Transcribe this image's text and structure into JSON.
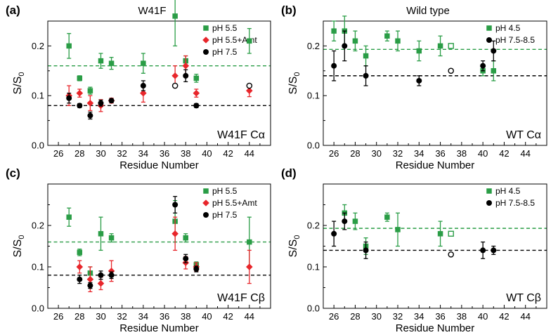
{
  "figure": {
    "colors": {
      "green": "#2a9d46",
      "red": "#e8262b",
      "black": "#000000"
    }
  },
  "chart_data": [
    {
      "type": "scatter",
      "panel_label": "(a)",
      "title": "W41F",
      "corner_text": "W41F Cα",
      "xlabel": "Residue Number",
      "ylabel": "S/S0",
      "xlim": [
        25,
        46
      ],
      "ylim": [
        0,
        0.25
      ],
      "xticks": [
        26,
        28,
        30,
        32,
        34,
        36,
        38,
        40,
        42,
        44
      ],
      "yticks": [
        0.0,
        0.1,
        0.2
      ],
      "legend_position": "top-right",
      "reference_lines": [
        {
          "y": 0.16,
          "color": "green",
          "style": "dashed"
        },
        {
          "y": 0.08,
          "color": "black",
          "style": "dashed"
        }
      ],
      "series": [
        {
          "name": "pH 5.5",
          "marker": "square",
          "color": "green",
          "points": [
            {
              "x": 27,
              "y": 0.2,
              "err": 0.025
            },
            {
              "x": 28,
              "y": 0.135,
              "err": 0.005
            },
            {
              "x": 29,
              "y": 0.11,
              "err": 0.007
            },
            {
              "x": 30,
              "y": 0.17,
              "err": 0.015
            },
            {
              "x": 31,
              "y": 0.165,
              "err": 0.012
            },
            {
              "x": 34,
              "y": 0.165,
              "err": 0.02
            },
            {
              "x": 37,
              "y": 0.26,
              "err": 0.06
            },
            {
              "x": 38,
              "y": 0.17,
              "err": 0.01
            },
            {
              "x": 39,
              "y": 0.135,
              "err": 0.008
            },
            {
              "x": 44,
              "y": 0.21,
              "err": 0.025
            }
          ]
        },
        {
          "name": "pH 5.5+Amt",
          "marker": "diamond",
          "color": "red",
          "points": [
            {
              "x": 27,
              "y": 0.1,
              "err": 0.02
            },
            {
              "x": 28,
              "y": 0.105,
              "err": 0.008
            },
            {
              "x": 29,
              "y": 0.085,
              "err": 0.015
            },
            {
              "x": 30,
              "y": 0.08,
              "err": 0.012
            },
            {
              "x": 31,
              "y": 0.09,
              "err": 0.005
            },
            {
              "x": 34,
              "y": 0.105,
              "err": 0.018
            },
            {
              "x": 37,
              "y": 0.14,
              "err": 0.02
            },
            {
              "x": 38,
              "y": 0.16,
              "err": 0.02
            },
            {
              "x": 39,
              "y": 0.105,
              "err": 0.008
            },
            {
              "x": 44,
              "y": 0.11,
              "err": 0.012
            }
          ]
        },
        {
          "name": "pH 7.5",
          "marker": "circle",
          "color": "black",
          "points": [
            {
              "x": 27,
              "y": 0.095,
              "err": 0.01
            },
            {
              "x": 28,
              "y": 0.08,
              "err": 0.004
            },
            {
              "x": 29,
              "y": 0.06,
              "err": 0.007
            },
            {
              "x": 30,
              "y": 0.085,
              "err": 0.006
            },
            {
              "x": 31,
              "y": 0.09,
              "err": 0.004
            },
            {
              "x": 34,
              "y": 0.12,
              "err": 0.01
            },
            {
              "x": 37,
              "y": 0.12,
              "err": 0,
              "open": true
            },
            {
              "x": 38,
              "y": 0.14,
              "err": 0.012
            },
            {
              "x": 39,
              "y": 0.08,
              "err": 0.004
            },
            {
              "x": 44,
              "y": 0.12,
              "err": 0,
              "open": true
            }
          ]
        }
      ]
    },
    {
      "type": "scatter",
      "panel_label": "(b)",
      "title": "Wild type",
      "corner_text": "WT Cα",
      "xlabel": "Residue Number",
      "ylabel": "S/S0",
      "xlim": [
        25,
        46
      ],
      "ylim": [
        0,
        0.25
      ],
      "xticks": [
        26,
        28,
        30,
        32,
        34,
        36,
        38,
        40,
        42,
        44
      ],
      "yticks": [
        0.0,
        0.1,
        0.2
      ],
      "legend_position": "top-right",
      "reference_lines": [
        {
          "y": 0.193,
          "color": "green",
          "style": "dashed"
        },
        {
          "y": 0.14,
          "color": "black",
          "style": "dashed"
        }
      ],
      "series": [
        {
          "name": "pH 4.5",
          "marker": "square",
          "color": "green",
          "points": [
            {
              "x": 26,
              "y": 0.23,
              "err": 0.02
            },
            {
              "x": 27,
              "y": 0.23,
              "err": 0.03
            },
            {
              "x": 28,
              "y": 0.21,
              "err": 0.02
            },
            {
              "x": 29,
              "y": 0.18,
              "err": 0.02
            },
            {
              "x": 31,
              "y": 0.22,
              "err": 0.01
            },
            {
              "x": 32,
              "y": 0.21,
              "err": 0.02
            },
            {
              "x": 34,
              "y": 0.19,
              "err": 0.02
            },
            {
              "x": 36,
              "y": 0.2,
              "err": 0.02
            },
            {
              "x": 37,
              "y": 0.2,
              "err": 0,
              "open": true
            },
            {
              "x": 40,
              "y": 0.15,
              "err": 0.01
            },
            {
              "x": 41,
              "y": 0.15,
              "err": 0.02
            }
          ]
        },
        {
          "name": "pH 7.5-8.5",
          "marker": "circle",
          "color": "black",
          "points": [
            {
              "x": 26,
              "y": 0.16,
              "err": 0.03
            },
            {
              "x": 27,
              "y": 0.2,
              "err": 0.03
            },
            {
              "x": 29,
              "y": 0.14,
              "err": 0.02
            },
            {
              "x": 34,
              "y": 0.13,
              "err": 0.01
            },
            {
              "x": 37,
              "y": 0.15,
              "err": 0,
              "open": true
            },
            {
              "x": 40,
              "y": 0.16,
              "err": 0.01
            },
            {
              "x": 41,
              "y": 0.19,
              "err": 0.02
            }
          ]
        }
      ]
    },
    {
      "type": "scatter",
      "panel_label": "(c)",
      "title": "",
      "corner_text": "W41F Cβ",
      "xlabel": "Residue Number",
      "ylabel": "S/S0",
      "xlim": [
        25,
        46
      ],
      "ylim": [
        0,
        0.3
      ],
      "xticks": [
        26,
        28,
        30,
        32,
        34,
        36,
        38,
        40,
        42,
        44
      ],
      "yticks": [
        0.0,
        0.1,
        0.2
      ],
      "legend_position": "top-right",
      "reference_lines": [
        {
          "y": 0.16,
          "color": "green",
          "style": "dashed"
        },
        {
          "y": 0.08,
          "color": "black",
          "style": "dashed"
        }
      ],
      "series": [
        {
          "name": "pH 5.5",
          "marker": "square",
          "color": "green",
          "points": [
            {
              "x": 27,
              "y": 0.22,
              "err": 0.022
            },
            {
              "x": 28,
              "y": 0.135,
              "err": 0.008
            },
            {
              "x": 29,
              "y": 0.085,
              "err": 0.015
            },
            {
              "x": 30,
              "y": 0.18,
              "err": 0.04
            },
            {
              "x": 31,
              "y": 0.17,
              "err": 0.01
            },
            {
              "x": 37,
              "y": 0.21,
              "err": 0.05
            },
            {
              "x": 38,
              "y": 0.17,
              "err": 0.01
            },
            {
              "x": 39,
              "y": 0.105,
              "err": 0.007
            },
            {
              "x": 44,
              "y": 0.16,
              "err": 0.06
            }
          ]
        },
        {
          "name": "pH 5.5+Amt",
          "marker": "diamond",
          "color": "red",
          "points": [
            {
              "x": 28,
              "y": 0.1,
              "err": 0.015
            },
            {
              "x": 29,
              "y": 0.07,
              "err": 0.03
            },
            {
              "x": 30,
              "y": 0.06,
              "err": 0.015
            },
            {
              "x": 31,
              "y": 0.09,
              "err": 0.025
            },
            {
              "x": 37,
              "y": 0.18,
              "err": 0.04
            },
            {
              "x": 38,
              "y": 0.11,
              "err": 0.015
            },
            {
              "x": 39,
              "y": 0.1,
              "err": 0.01
            },
            {
              "x": 44,
              "y": 0.1,
              "err": 0.04
            }
          ]
        },
        {
          "name": "pH 7.5",
          "marker": "circle",
          "color": "black",
          "points": [
            {
              "x": 28,
              "y": 0.07,
              "err": 0.01
            },
            {
              "x": 29,
              "y": 0.055,
              "err": 0.007
            },
            {
              "x": 30,
              "y": 0.08,
              "err": 0.01
            },
            {
              "x": 31,
              "y": 0.08,
              "err": 0.008
            },
            {
              "x": 37,
              "y": 0.25,
              "err": 0.02
            },
            {
              "x": 38,
              "y": 0.12,
              "err": 0.01
            },
            {
              "x": 39,
              "y": 0.095,
              "err": 0.007
            }
          ]
        }
      ]
    },
    {
      "type": "scatter",
      "panel_label": "(d)",
      "title": "",
      "corner_text": "WT Cβ",
      "xlabel": "Residue Number",
      "ylabel": "S/S0",
      "xlim": [
        25,
        46
      ],
      "ylim": [
        0,
        0.3
      ],
      "xticks": [
        26,
        28,
        30,
        32,
        34,
        36,
        38,
        40,
        42,
        44
      ],
      "yticks": [
        0.0,
        0.1,
        0.2
      ],
      "legend_position": "top-right",
      "reference_lines": [
        {
          "y": 0.193,
          "color": "green",
          "style": "dashed"
        },
        {
          "y": 0.14,
          "color": "black",
          "style": "dashed"
        }
      ],
      "series": [
        {
          "name": "pH 4.5",
          "marker": "square",
          "color": "green",
          "points": [
            {
              "x": 27,
              "y": 0.23,
              "err": 0.02
            },
            {
              "x": 28,
              "y": 0.21,
              "err": 0.02
            },
            {
              "x": 29,
              "y": 0.15,
              "err": 0.02
            },
            {
              "x": 31,
              "y": 0.22,
              "err": 0.01
            },
            {
              "x": 32,
              "y": 0.19,
              "err": 0.04
            },
            {
              "x": 36,
              "y": 0.18,
              "err": 0.03
            },
            {
              "x": 37,
              "y": 0.18,
              "err": 0,
              "open": true
            }
          ]
        },
        {
          "name": "pH 7.5-8.5",
          "marker": "circle",
          "color": "black",
          "points": [
            {
              "x": 26,
              "y": 0.18,
              "err": 0.03
            },
            {
              "x": 27,
              "y": 0.21,
              "err": 0.02
            },
            {
              "x": 29,
              "y": 0.14,
              "err": 0.02
            },
            {
              "x": 37,
              "y": 0.13,
              "err": 0,
              "open": true
            },
            {
              "x": 40,
              "y": 0.14,
              "err": 0.02
            },
            {
              "x": 41,
              "y": 0.14,
              "err": 0.01
            }
          ]
        }
      ]
    }
  ]
}
